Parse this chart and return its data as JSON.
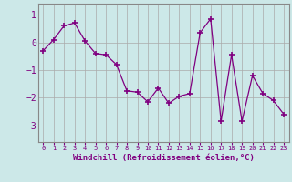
{
  "x": [
    0,
    1,
    2,
    3,
    4,
    5,
    6,
    7,
    8,
    9,
    10,
    11,
    12,
    13,
    14,
    15,
    16,
    17,
    18,
    19,
    20,
    21,
    22,
    23
  ],
  "y": [
    -0.3,
    0.1,
    0.6,
    0.7,
    0.05,
    -0.4,
    -0.45,
    -0.8,
    -1.75,
    -1.8,
    -2.15,
    -1.65,
    -2.2,
    -1.95,
    -1.85,
    0.35,
    0.85,
    -2.85,
    -0.45,
    -2.85,
    -1.2,
    -1.85,
    -2.1,
    -2.6
  ],
  "line_color": "#800080",
  "marker": "+",
  "marker_size": 4,
  "bg_color": "#cce8e8",
  "grid_color": "#aaaaaa",
  "xlabel": "Windchill (Refroidissement éolien,°C)",
  "xlabel_color": "#800080",
  "ylim": [
    -3.6,
    1.4
  ],
  "yticks": [
    -3,
    -2,
    -1,
    0,
    1
  ],
  "xlim": [
    -0.5,
    23.5
  ],
  "title": ""
}
